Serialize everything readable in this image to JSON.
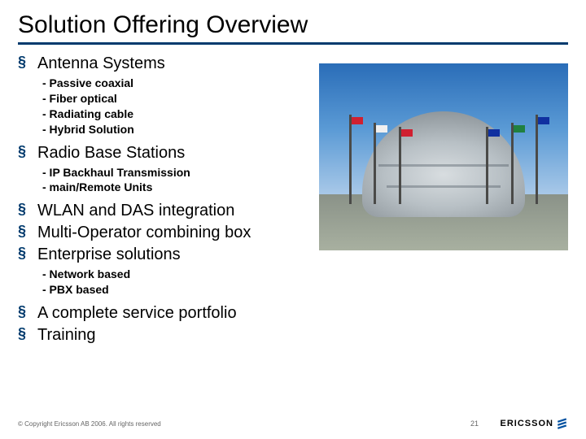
{
  "title": "Solution Offering Overview",
  "items": [
    {
      "label": "Antenna Systems",
      "subs": [
        "- Passive coaxial",
        "- Fiber optical",
        "- Radiating cable",
        "- Hybrid Solution"
      ]
    },
    {
      "label": "Radio Base Stations",
      "subs": [
        "- IP Backhaul Transmission",
        "- main/Remote Units"
      ]
    },
    {
      "label": "WLAN and DAS integration",
      "subs": []
    },
    {
      "label": "Multi-Operator combining box",
      "subs": []
    },
    {
      "label": "Enterprise solutions",
      "subs": [
        "- Network based",
        "- PBX based"
      ]
    },
    {
      "label": "A complete service portfolio",
      "subs": []
    },
    {
      "label": "Training",
      "subs": []
    }
  ],
  "footer": {
    "copyright": "© Copyright Ericsson AB 2006. All rights reserved",
    "page": "21",
    "logo": "ERICSSON"
  },
  "colors": {
    "accent": "#003a6d",
    "text": "#000000",
    "footer_text": "#666666"
  }
}
